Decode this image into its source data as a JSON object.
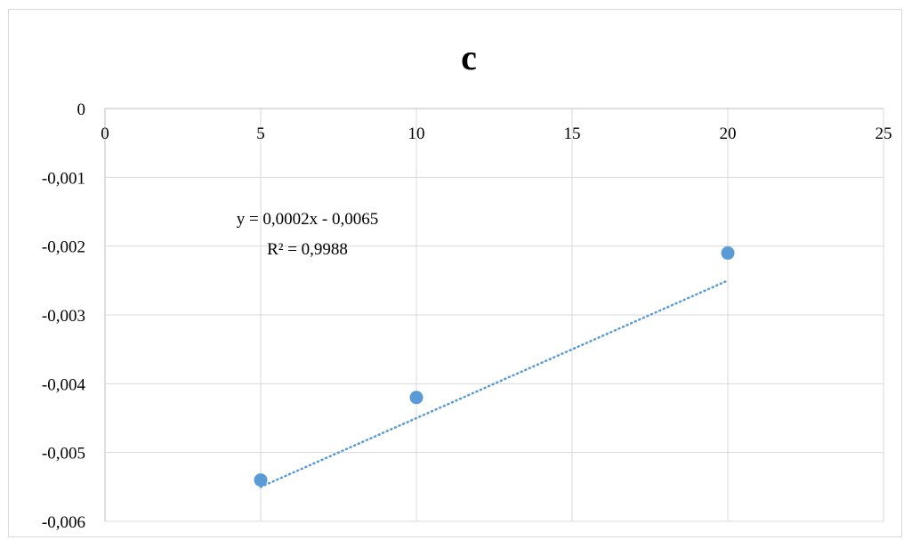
{
  "chart_data": {
    "type": "scatter",
    "title": "c",
    "xlabel": "",
    "ylabel": "",
    "xlim": [
      0,
      25
    ],
    "ylim": [
      -0.006,
      0
    ],
    "x_ticks": [
      0,
      5,
      10,
      15,
      20,
      25
    ],
    "y_ticks": [
      0,
      -0.001,
      -0.002,
      -0.003,
      -0.004,
      -0.005,
      -0.006
    ],
    "x_tick_labels": [
      "0",
      "5",
      "10",
      "15",
      "20",
      "25"
    ],
    "y_tick_labels": [
      "0",
      "-0,001",
      "-0,002",
      "-0,003",
      "-0,004",
      "-0,005",
      "-0,006"
    ],
    "grid": true,
    "legend": "none",
    "series": [
      {
        "x": [
          5,
          10,
          20
        ],
        "y": [
          -0.0054,
          -0.0042,
          -0.0021
        ],
        "color": "#5b9bd5"
      }
    ],
    "trendline": {
      "type": "linear",
      "style": "dotted",
      "color": "#5b9bd5",
      "slope": 0.0002,
      "intercept": -0.0065,
      "x_range": [
        5,
        20
      ],
      "equation": "y = 0,0002x - 0,0065",
      "r_squared": "R² = 0,9988"
    }
  }
}
